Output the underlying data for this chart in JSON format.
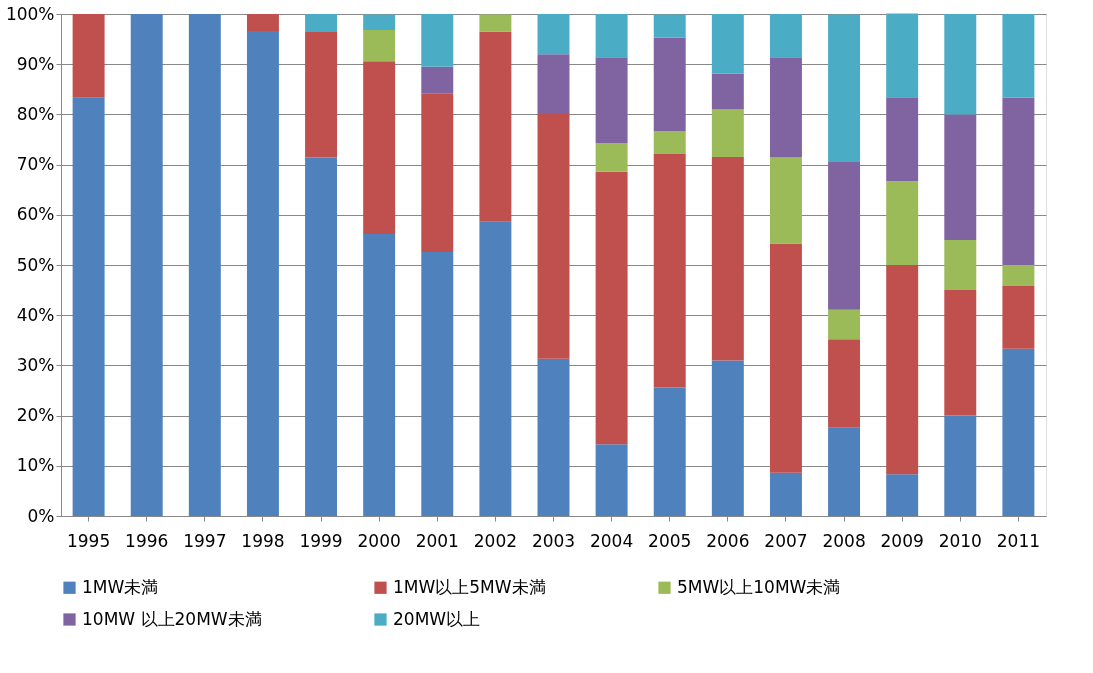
{
  "chart_data": {
    "type": "bar",
    "stacked": true,
    "categories": [
      "1995",
      "1996",
      "1997",
      "1998",
      "1999",
      "2000",
      "2001",
      "2002",
      "2003",
      "2004",
      "2005",
      "2006",
      "2007",
      "2008",
      "2009",
      "2010",
      "2011"
    ],
    "series": [
      {
        "name": "1MW未満",
        "color": "#4f81bd",
        "values": [
          83.3,
          100,
          100,
          96.6,
          71.4,
          56.2,
          52.6,
          58.6,
          31.3,
          14.3,
          25.6,
          31.0,
          8.6,
          17.6,
          8.3,
          20,
          33.3
        ]
      },
      {
        "name": "1MW以上5MW未満",
        "color": "#c0504d",
        "values": [
          16.7,
          null,
          null,
          3.4,
          25.0,
          34.4,
          31.6,
          37.9,
          49.0,
          54.3,
          46.5,
          40.5,
          45.7,
          17.6,
          41.7,
          25,
          12.5
        ]
      },
      {
        "name": "5MW以上10MW未満",
        "color": "#9bbb59",
        "values": [
          null,
          null,
          null,
          null,
          null,
          6.2,
          null,
          3.4,
          null,
          5.7,
          4.6,
          9.5,
          17.1,
          5.9,
          16.7,
          10,
          4.2
        ]
      },
      {
        "name": "10MW 以上20MW未満",
        "color": "#8064a2",
        "values": [
          null,
          null,
          null,
          null,
          null,
          null,
          5.3,
          null,
          11.7,
          17.1,
          18.6,
          7.1,
          20.0,
          29.4,
          16.7,
          25,
          33.3
        ]
      },
      {
        "name": "20MW以上",
        "color": "#4bacc6",
        "values": [
          null,
          null,
          null,
          null,
          3.6,
          3.1,
          10.5,
          null,
          8.0,
          8.6,
          4.6,
          11.9,
          8.6,
          29.4,
          16.7,
          20,
          16.7
        ]
      }
    ],
    "ylim": [
      0,
      100
    ],
    "yticks": [
      {
        "value": 0,
        "label": "0%"
      },
      {
        "value": 10,
        "label": "10%"
      },
      {
        "value": 20,
        "label": "20%"
      },
      {
        "value": 30,
        "label": "30%"
      },
      {
        "value": 40,
        "label": "40%"
      },
      {
        "value": 50,
        "label": "50%"
      },
      {
        "value": 60,
        "label": "60%"
      },
      {
        "value": 70,
        "label": "70%"
      },
      {
        "value": 80,
        "label": "80%"
      },
      {
        "value": 90,
        "label": "90%"
      },
      {
        "value": 100,
        "label": "100%"
      }
    ],
    "grid": "y",
    "legend": "bottom"
  }
}
